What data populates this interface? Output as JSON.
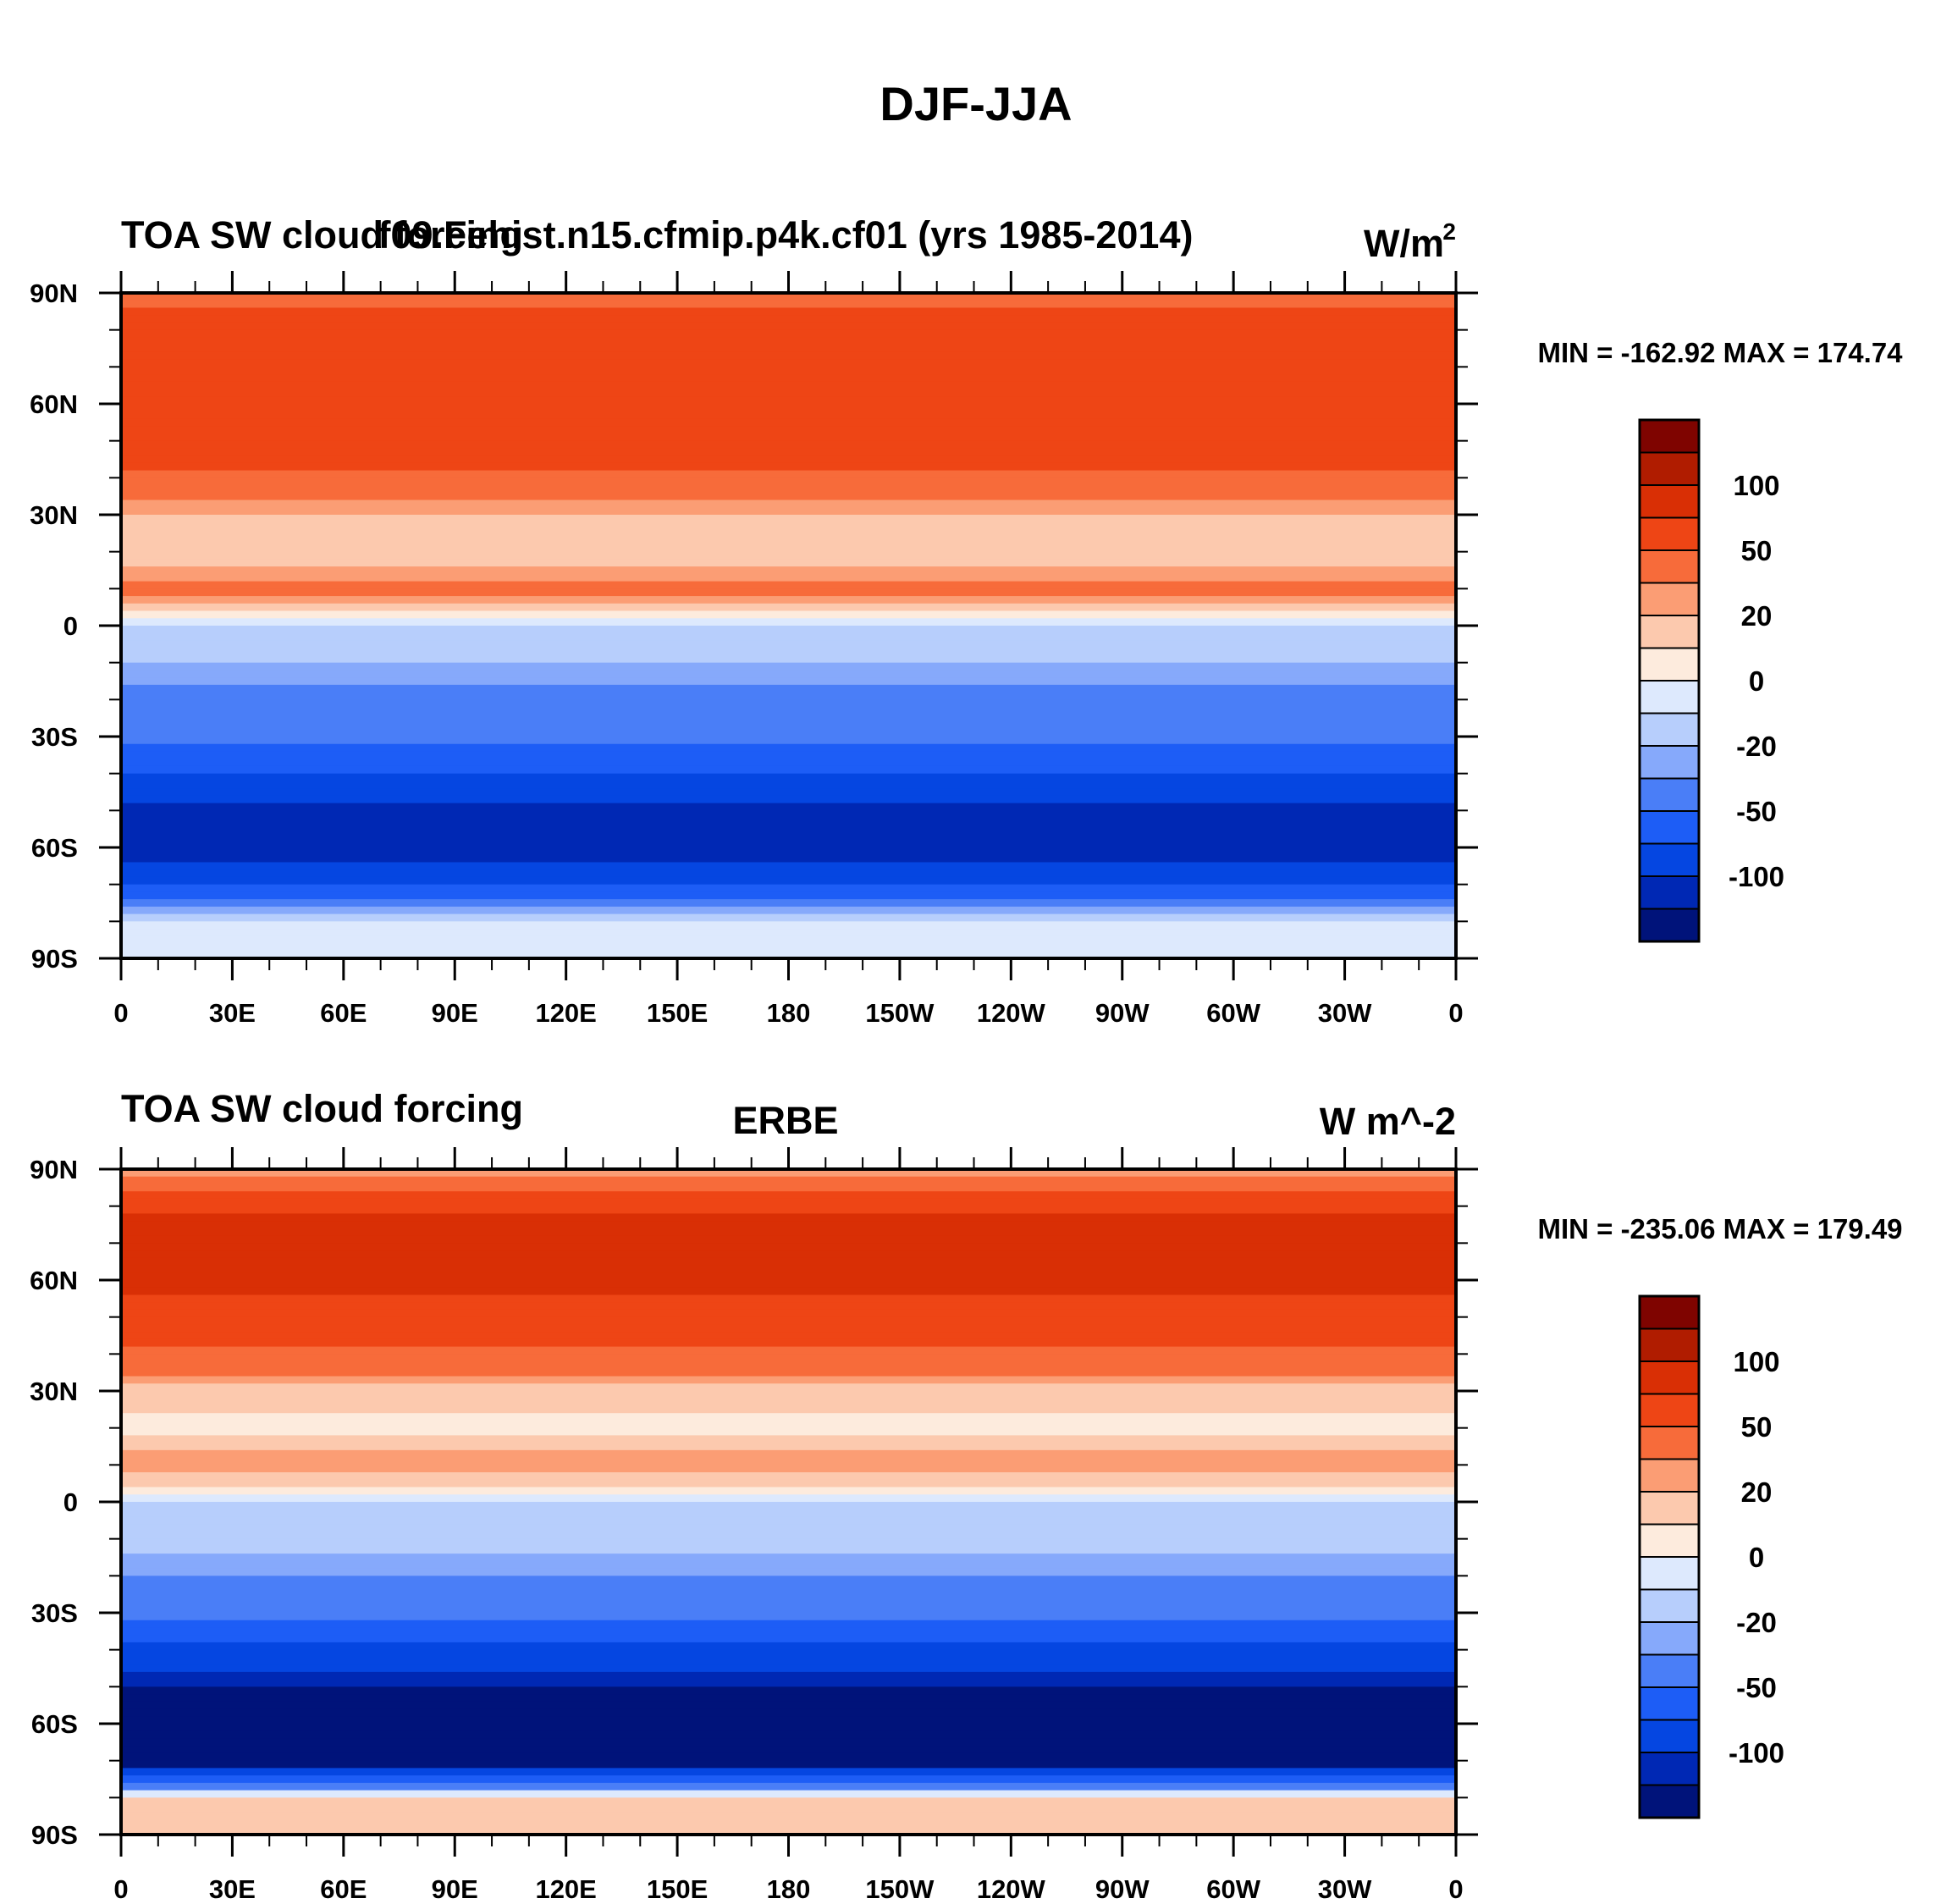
{
  "figure_title": "DJF-JJA",
  "colormap": {
    "colors": [
      "#00137a",
      "#0028b4",
      "#0546e1",
      "#1d5df6",
      "#4a7ef7",
      "#86a9fb",
      "#b7cefc",
      "#dde9fd",
      "#fdebdd",
      "#fcc9ae",
      "#fb9d74",
      "#f76b3a",
      "#ee4515",
      "#d92f05",
      "#b01c00",
      "#7f0400"
    ],
    "labels": [
      "100",
      "50",
      "20",
      "0",
      "-20",
      "-50",
      "-100"
    ]
  },
  "chart_data": [
    {
      "type": "heatmap",
      "left_title": "TOA SW cloud forcing",
      "center_title": "f09.Fehist.n15.cfmip.p4k.cf01 (yrs 1985-2014)",
      "units": "W/m",
      "units_sup": "2",
      "min": -162.92,
      "max": 174.74,
      "minmax_label": "MIN = -162.92 MAX = 174.74",
      "colorbar_levels": [
        -150,
        -120,
        -100,
        -75,
        -50,
        -30,
        -20,
        -10,
        0,
        10,
        20,
        30,
        50,
        75,
        100,
        120
      ],
      "x_ticks": [
        "0",
        "30E",
        "60E",
        "90E",
        "120E",
        "150E",
        "180",
        "150W",
        "120W",
        "90W",
        "60W",
        "30W",
        "0"
      ],
      "y_ticks": [
        "90N",
        "60N",
        "30N",
        "0",
        "30S",
        "60S",
        "90S"
      ],
      "xlim": [
        0,
        360
      ],
      "ylim": [
        -90,
        90
      ],
      "zonal_profile": [
        {
          "lat": 90,
          "value": 40
        },
        {
          "lat": 75,
          "value": 70
        },
        {
          "lat": 60,
          "value": 65
        },
        {
          "lat": 45,
          "value": 55
        },
        {
          "lat": 30,
          "value": 20
        },
        {
          "lat": 20,
          "value": 10
        },
        {
          "lat": 10,
          "value": 35
        },
        {
          "lat": 0,
          "value": -15
        },
        {
          "lat": -10,
          "value": -20
        },
        {
          "lat": -20,
          "value": -35
        },
        {
          "lat": -30,
          "value": -40
        },
        {
          "lat": -40,
          "value": -75
        },
        {
          "lat": -50,
          "value": -110
        },
        {
          "lat": -60,
          "value": -120
        },
        {
          "lat": -70,
          "value": -80
        },
        {
          "lat": -80,
          "value": -5
        },
        {
          "lat": -90,
          "value": -5
        }
      ]
    },
    {
      "type": "heatmap",
      "left_title": "TOA SW cloud forcing",
      "center_title": "ERBE",
      "units": "W m^-2",
      "units_sup": "",
      "min": -235.06,
      "max": 179.49,
      "minmax_label": "MIN = -235.06 MAX = 179.49",
      "colorbar_levels": [
        -150,
        -120,
        -100,
        -75,
        -50,
        -30,
        -20,
        -10,
        0,
        10,
        20,
        30,
        50,
        75,
        100,
        120
      ],
      "x_ticks": [
        "0",
        "30E",
        "60E",
        "90E",
        "120E",
        "150E",
        "180",
        "150W",
        "120W",
        "90W",
        "60W",
        "30W",
        "0"
      ],
      "y_ticks": [
        "90N",
        "60N",
        "30N",
        "0",
        "30S",
        "60S",
        "90S"
      ],
      "xlim": [
        0,
        360
      ],
      "ylim": [
        -90,
        90
      ],
      "zonal_profile": [
        {
          "lat": 90,
          "value": 15
        },
        {
          "lat": 75,
          "value": 90
        },
        {
          "lat": 60,
          "value": 80
        },
        {
          "lat": 45,
          "value": 60
        },
        {
          "lat": 30,
          "value": 15
        },
        {
          "lat": 20,
          "value": 5
        },
        {
          "lat": 10,
          "value": 30
        },
        {
          "lat": 0,
          "value": -10
        },
        {
          "lat": -10,
          "value": -15
        },
        {
          "lat": -20,
          "value": -30
        },
        {
          "lat": -30,
          "value": -40
        },
        {
          "lat": -40,
          "value": -80
        },
        {
          "lat": -50,
          "value": -120
        },
        {
          "lat": -60,
          "value": -155
        },
        {
          "lat": -70,
          "value": -140
        },
        {
          "lat": -80,
          "value": 15
        },
        {
          "lat": -90,
          "value": 10
        }
      ]
    }
  ]
}
